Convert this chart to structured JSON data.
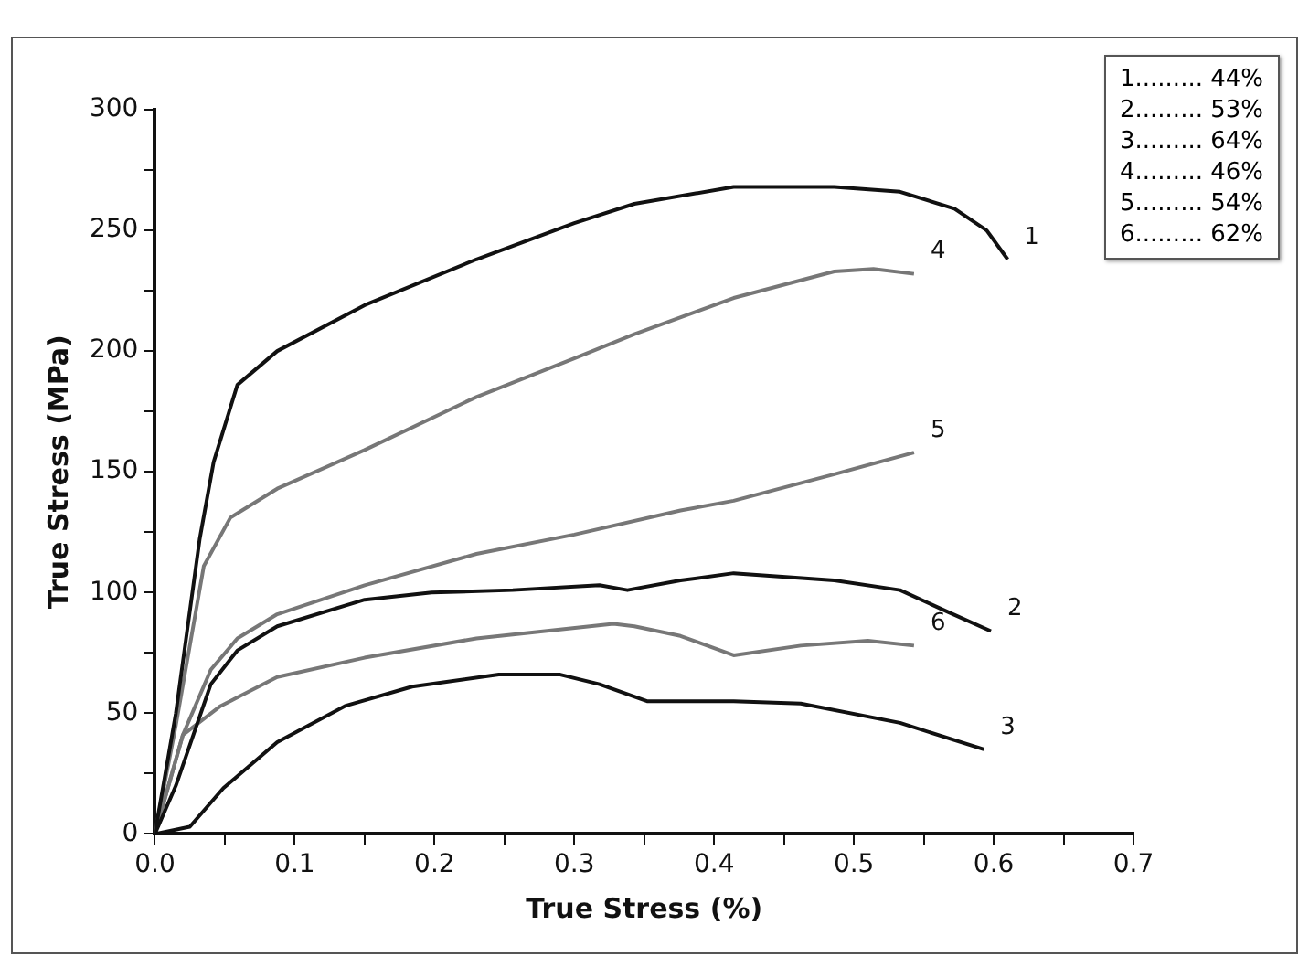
{
  "chart_data": {
    "type": "line",
    "xlabel": "True Stress (%)",
    "ylabel": "True Stress (MPa)",
    "xlim": [
      0,
      0.7
    ],
    "ylim": [
      0,
      300
    ],
    "xticks": [
      {
        "value": 0,
        "label": "0.0"
      },
      {
        "value": 0.05,
        "label": null
      },
      {
        "value": 0.1,
        "label": "0.1"
      },
      {
        "value": 0.15,
        "label": null
      },
      {
        "value": 0.2,
        "label": "0.2"
      },
      {
        "value": 0.25,
        "label": null
      },
      {
        "value": 0.3,
        "label": "0.3"
      },
      {
        "value": 0.35,
        "label": null
      },
      {
        "value": 0.4,
        "label": "0.4"
      },
      {
        "value": 0.45,
        "label": null
      },
      {
        "value": 0.5,
        "label": "0.5"
      },
      {
        "value": 0.55,
        "label": null
      },
      {
        "value": 0.6,
        "label": "0.6"
      },
      {
        "value": 0.65,
        "label": null
      },
      {
        "value": 0.7,
        "label": "0.7"
      }
    ],
    "yticks": [
      0,
      {
        "value": 25,
        "label": null
      },
      50,
      {
        "value": 75,
        "label": null
      },
      100,
      {
        "value": 125,
        "label": null
      },
      150,
      {
        "value": 175,
        "label": null
      },
      200,
      {
        "value": 225,
        "label": null
      },
      250,
      {
        "value": 275,
        "label": null
      },
      300
    ],
    "grid": false,
    "legend": false,
    "marker": "none",
    "line_style": "solid",
    "annotations": [
      "1......... 44%",
      "2......... 53%",
      "3......... 64%",
      "4......... 46%",
      "5......... 54%",
      "6......... 62%"
    ],
    "series": [
      {
        "name": "1",
        "color": "#111111",
        "x": [
          0,
          0.015,
          0.032,
          0.042,
          0.059,
          0.0875,
          0.15,
          0.23,
          0.3,
          0.343,
          0.414,
          0.486,
          0.533,
          0.572,
          0.595,
          0.61
        ],
        "values": [
          0,
          50,
          122,
          154,
          186,
          200,
          219,
          238,
          253,
          261,
          268,
          268,
          266,
          259,
          250,
          238
        ]
      },
      {
        "name": "2",
        "color": "#111111",
        "x": [
          0,
          0.015,
          0.04,
          0.059,
          0.0875,
          0.15,
          0.198,
          0.256,
          0.318,
          0.338,
          0.376,
          0.414,
          0.486,
          0.533,
          0.567,
          0.598
        ],
        "values": [
          0,
          20,
          62,
          76,
          86,
          97,
          100,
          101,
          103,
          101,
          105,
          108,
          105,
          101,
          92,
          84
        ]
      },
      {
        "name": "3",
        "color": "#111111",
        "x": [
          0,
          0.025,
          0.049,
          0.0875,
          0.136,
          0.184,
          0.246,
          0.29,
          0.318,
          0.352,
          0.414,
          0.462,
          0.533,
          0.593
        ],
        "values": [
          0,
          3,
          19,
          38,
          53,
          61,
          66,
          66,
          62,
          55,
          55,
          54,
          46,
          35
        ]
      },
      {
        "name": "4",
        "color": "#777777",
        "x": [
          0,
          0.015,
          0.035,
          0.054,
          0.0875,
          0.15,
          0.23,
          0.3,
          0.343,
          0.414,
          0.486,
          0.514,
          0.543
        ],
        "values": [
          0,
          45,
          111,
          131,
          143,
          159,
          181,
          197,
          207,
          222,
          233,
          234,
          232
        ]
      },
      {
        "name": "5",
        "color": "#777777",
        "x": [
          0,
          0.02,
          0.04,
          0.059,
          0.0875,
          0.15,
          0.23,
          0.3,
          0.376,
          0.414,
          0.486,
          0.543
        ],
        "values": [
          0,
          41,
          68,
          81,
          91,
          103,
          116,
          124,
          134,
          138,
          149,
          158
        ]
      },
      {
        "name": "6",
        "color": "#777777",
        "x": [
          0,
          0.02,
          0.047,
          0.0875,
          0.15,
          0.23,
          0.328,
          0.343,
          0.376,
          0.414,
          0.462,
          0.51,
          0.543
        ],
        "values": [
          0,
          41,
          53,
          65,
          73,
          81,
          87,
          86,
          82,
          74,
          78,
          80,
          78
        ]
      }
    ]
  }
}
